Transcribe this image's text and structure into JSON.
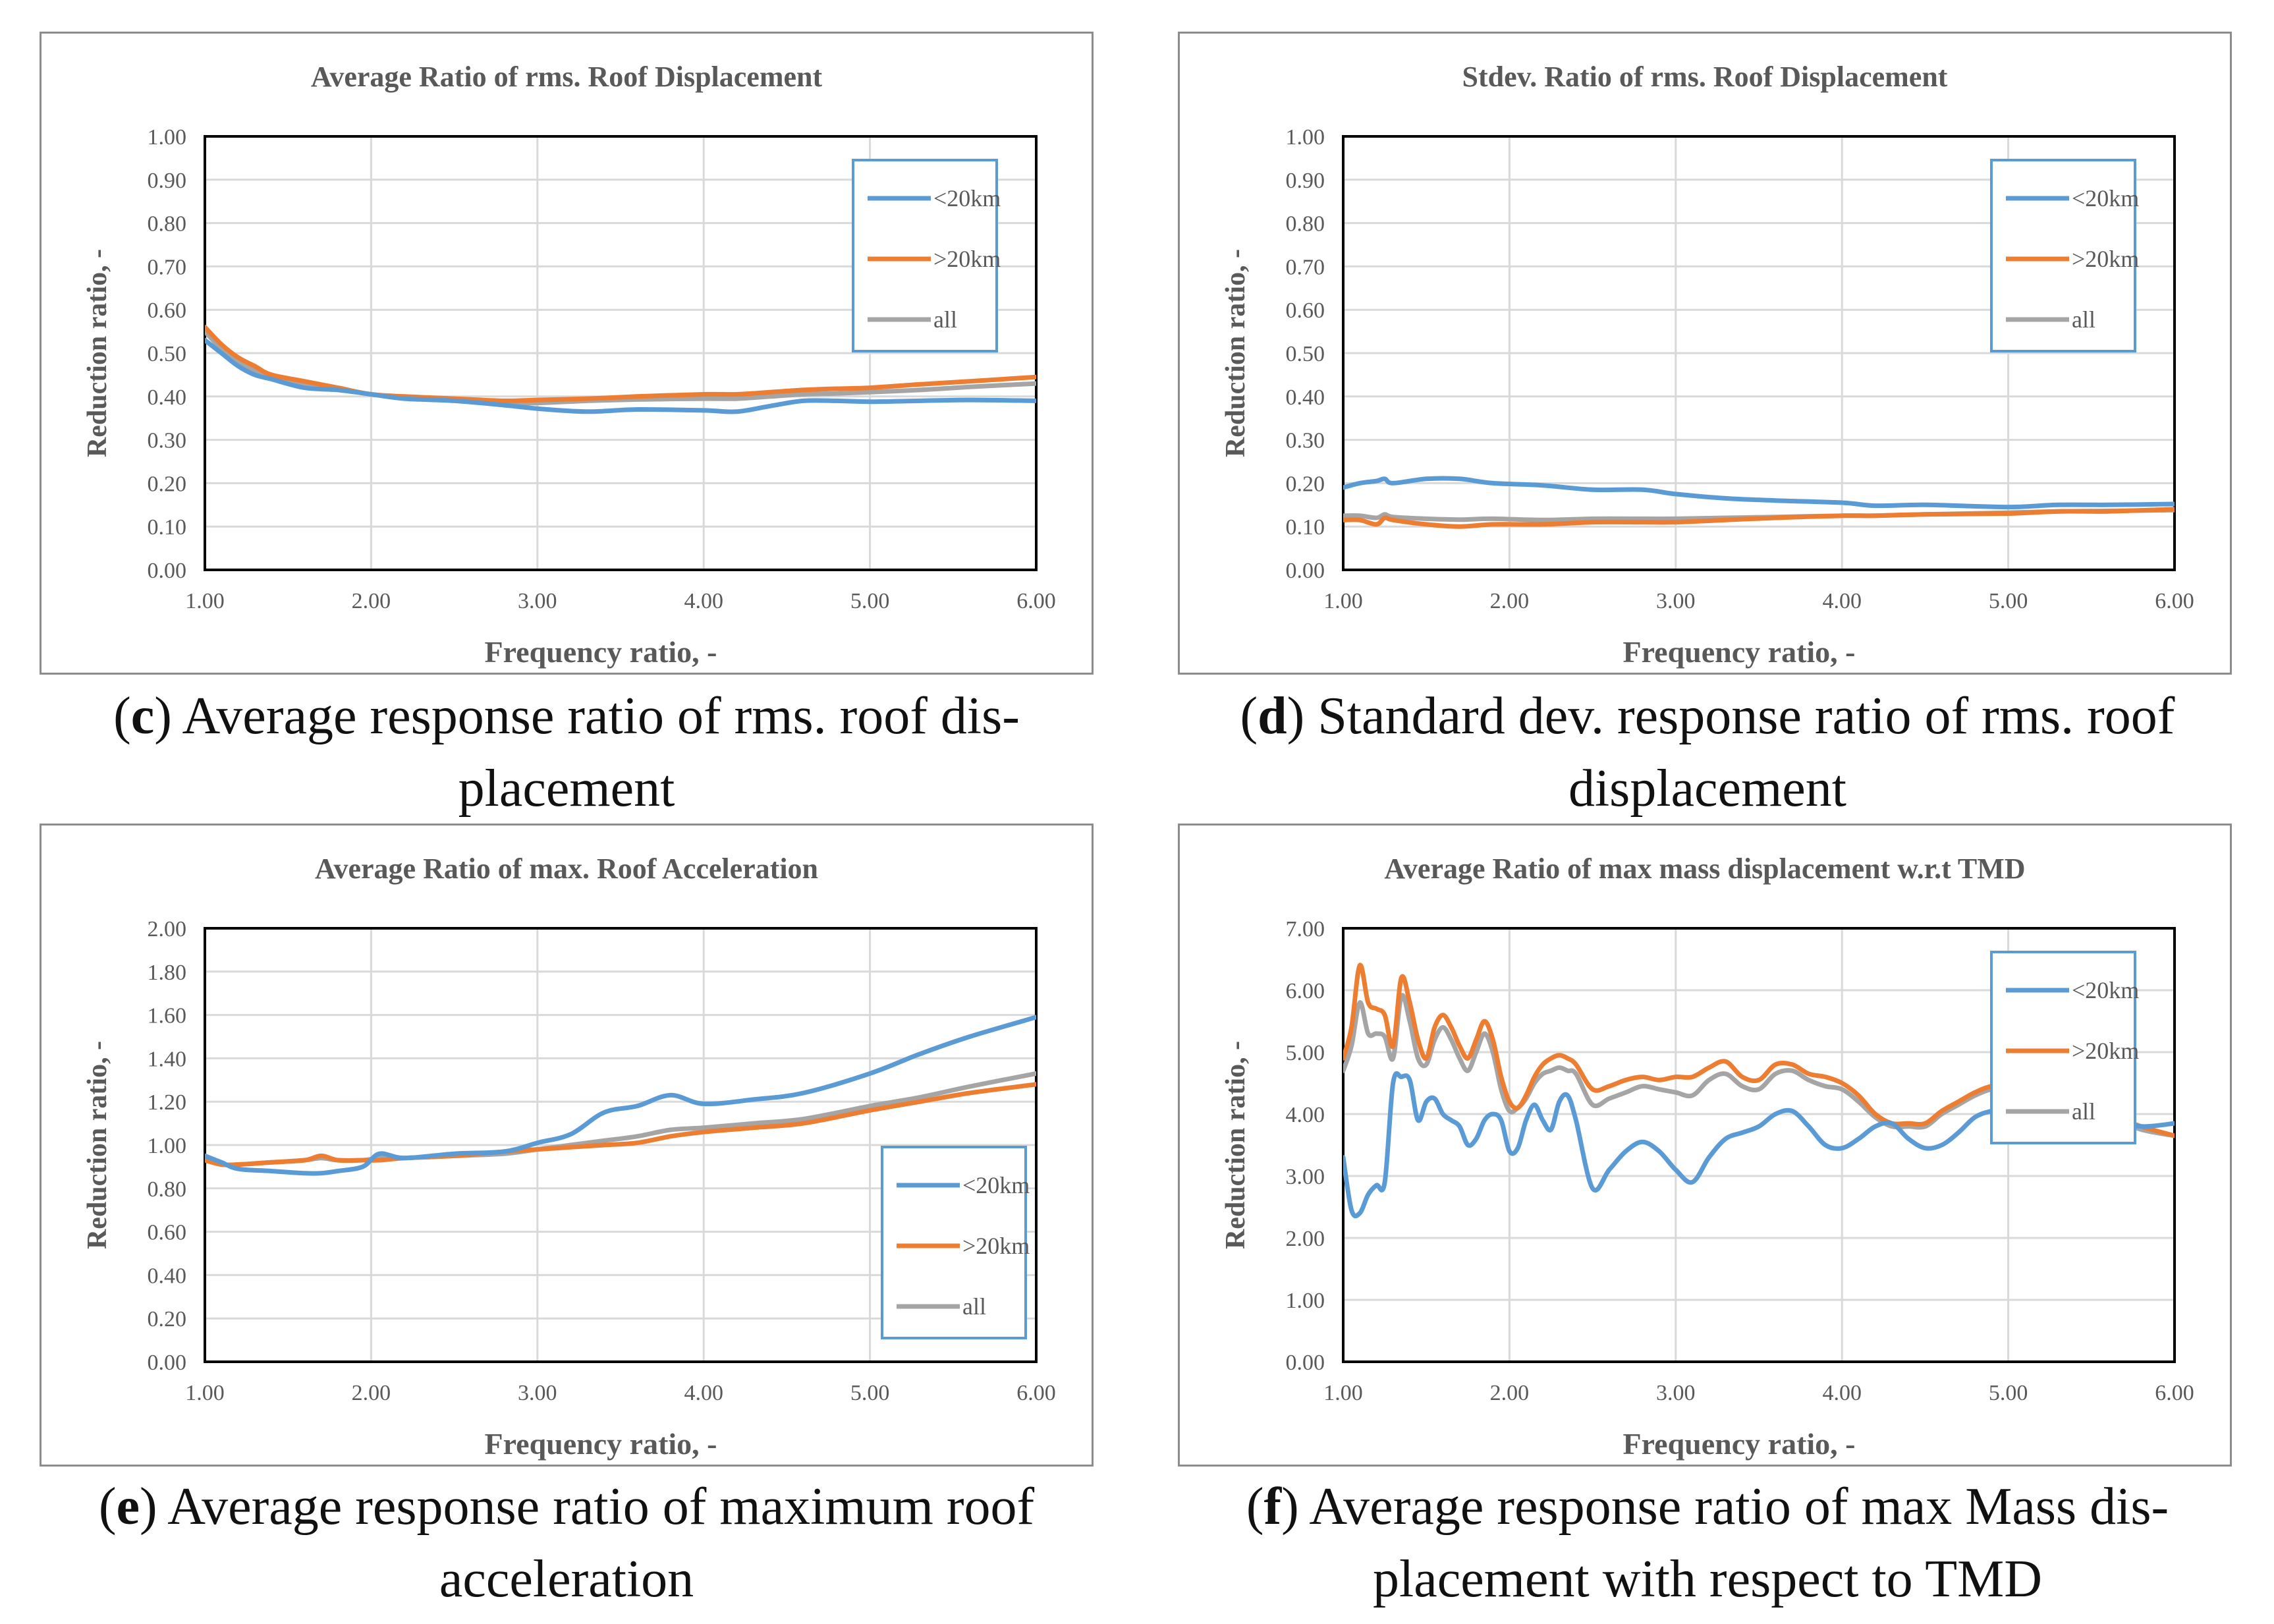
{
  "captions": [
    {
      "letter": "c",
      "text": "Average response ratio of rms. roof dis-\nplacement"
    },
    {
      "letter": "d",
      "text": "Standard dev. response ratio of rms. roof\ndisplacement"
    },
    {
      "letter": "e",
      "text": "Average response ratio of maximum roof\nacceleration"
    },
    {
      "letter": "f",
      "text": "Average response ratio of max Mass dis-\nplacement with respect to TMD"
    }
  ],
  "colors": {
    "lt20km": "#5b9bd5",
    "gt20km": "#ed7d31",
    "all": "#a5a5a5",
    "legend_border": "#5b9bd5",
    "grid": "#d9d9d9",
    "axis_text": "#595959"
  },
  "chart_data": [
    {
      "type": "line",
      "title": "Average Ratio of rms. Roof Displacement",
      "xlabel": "Frequency ratio, -",
      "ylabel": "Reduction ratio, -",
      "xlim": [
        1,
        6
      ],
      "ylim": [
        0,
        1
      ],
      "xticks": [
        "1.00",
        "2.00",
        "3.00",
        "4.00",
        "5.00",
        "6.00"
      ],
      "yticks": [
        "0.00",
        "0.10",
        "0.20",
        "0.30",
        "0.40",
        "0.50",
        "0.60",
        "0.70",
        "0.80",
        "0.90",
        "1.00"
      ],
      "legend_position": "top-right",
      "x": [
        1.0,
        1.1,
        1.2,
        1.3,
        1.4,
        1.6,
        1.8,
        2.0,
        2.2,
        2.5,
        2.8,
        3.0,
        3.3,
        3.6,
        4.0,
        4.2,
        4.4,
        4.6,
        4.8,
        5.0,
        5.3,
        5.6,
        6.0
      ],
      "series": [
        {
          "name": "<20km",
          "values": [
            0.53,
            0.5,
            0.47,
            0.45,
            0.44,
            0.42,
            0.415,
            0.405,
            0.395,
            0.39,
            0.38,
            0.372,
            0.365,
            0.37,
            0.368,
            0.365,
            0.378,
            0.39,
            0.39,
            0.388,
            0.39,
            0.392,
            0.39
          ]
        },
        {
          "name": ">20km",
          "values": [
            0.56,
            0.52,
            0.49,
            0.47,
            0.45,
            0.435,
            0.42,
            0.405,
            0.4,
            0.395,
            0.39,
            0.392,
            0.395,
            0.4,
            0.405,
            0.405,
            0.41,
            0.415,
            0.418,
            0.42,
            0.428,
            0.435,
            0.445
          ]
        },
        {
          "name": "all",
          "values": [
            0.55,
            0.51,
            0.48,
            0.46,
            0.445,
            0.43,
            0.418,
            0.405,
            0.398,
            0.392,
            0.385,
            0.385,
            0.39,
            0.393,
            0.395,
            0.395,
            0.4,
            0.405,
            0.407,
            0.41,
            0.415,
            0.422,
            0.43
          ]
        }
      ]
    },
    {
      "type": "line",
      "title": "Stdev. Ratio of  rms. Roof Displacement",
      "xlabel": "Frequency ratio, -",
      "ylabel": "Reduction ratio, -",
      "xlim": [
        1,
        6
      ],
      "ylim": [
        0,
        1
      ],
      "xticks": [
        "1.00",
        "2.00",
        "3.00",
        "4.00",
        "5.00",
        "6.00"
      ],
      "yticks": [
        "0.00",
        "0.10",
        "0.20",
        "0.30",
        "0.40",
        "0.50",
        "0.60",
        "0.70",
        "0.80",
        "0.90",
        "1.00"
      ],
      "legend_position": "top-right",
      "x": [
        1.0,
        1.1,
        1.2,
        1.25,
        1.3,
        1.5,
        1.7,
        1.9,
        2.2,
        2.5,
        2.8,
        3.0,
        3.3,
        3.6,
        4.0,
        4.2,
        4.5,
        5.0,
        5.3,
        5.6,
        6.0
      ],
      "series": [
        {
          "name": "<20km",
          "values": [
            0.19,
            0.2,
            0.205,
            0.21,
            0.2,
            0.21,
            0.21,
            0.2,
            0.195,
            0.185,
            0.185,
            0.175,
            0.165,
            0.16,
            0.155,
            0.148,
            0.15,
            0.145,
            0.15,
            0.15,
            0.152
          ]
        },
        {
          "name": ">20km",
          "values": [
            0.115,
            0.115,
            0.105,
            0.12,
            0.115,
            0.105,
            0.1,
            0.105,
            0.105,
            0.11,
            0.11,
            0.11,
            0.115,
            0.12,
            0.125,
            0.125,
            0.128,
            0.13,
            0.135,
            0.135,
            0.14
          ]
        },
        {
          "name": "all",
          "values": [
            0.125,
            0.125,
            0.12,
            0.128,
            0.122,
            0.118,
            0.116,
            0.118,
            0.115,
            0.118,
            0.118,
            0.118,
            0.12,
            0.122,
            0.125,
            0.125,
            0.128,
            0.132,
            0.135,
            0.136,
            0.138
          ]
        }
      ]
    },
    {
      "type": "line",
      "title": "Average Ratio of max. Roof Acceleration",
      "xlabel": "Frequency ratio, -",
      "ylabel": "Reduction ratio, -",
      "xlim": [
        1,
        6
      ],
      "ylim": [
        0,
        2
      ],
      "xticks": [
        "1.00",
        "2.00",
        "3.00",
        "4.00",
        "5.00",
        "6.00"
      ],
      "yticks": [
        "0.00",
        "0.20",
        "0.40",
        "0.60",
        "0.80",
        "1.00",
        "1.20",
        "1.40",
        "1.60",
        "1.80",
        "2.00"
      ],
      "legend_position": "bottom-right",
      "x": [
        1.0,
        1.1,
        1.2,
        1.4,
        1.6,
        1.7,
        1.8,
        1.95,
        2.05,
        2.2,
        2.5,
        2.8,
        3.0,
        3.2,
        3.4,
        3.6,
        3.8,
        4.0,
        4.3,
        4.6,
        5.0,
        5.3,
        5.6,
        6.0
      ],
      "series": [
        {
          "name": "<20km",
          "values": [
            0.95,
            0.92,
            0.89,
            0.88,
            0.87,
            0.87,
            0.88,
            0.9,
            0.96,
            0.94,
            0.96,
            0.97,
            1.01,
            1.05,
            1.15,
            1.18,
            1.23,
            1.19,
            1.21,
            1.24,
            1.33,
            1.42,
            1.5,
            1.59
          ]
        },
        {
          "name": ">20km",
          "values": [
            0.93,
            0.91,
            0.91,
            0.92,
            0.93,
            0.95,
            0.93,
            0.93,
            0.93,
            0.94,
            0.95,
            0.97,
            0.98,
            0.99,
            1.0,
            1.01,
            1.04,
            1.06,
            1.08,
            1.1,
            1.16,
            1.2,
            1.24,
            1.28
          ]
        },
        {
          "name": "all",
          "values": [
            0.93,
            0.91,
            0.91,
            0.92,
            0.93,
            0.94,
            0.93,
            0.93,
            0.94,
            0.94,
            0.95,
            0.96,
            0.98,
            1.0,
            1.02,
            1.04,
            1.07,
            1.08,
            1.1,
            1.12,
            1.18,
            1.22,
            1.27,
            1.33
          ]
        }
      ]
    },
    {
      "type": "line",
      "title": "Average Ratio of max mass displacement w.r.t TMD",
      "xlabel": "Frequency ratio, -",
      "ylabel": "Reduction ratio, -",
      "xlim": [
        1,
        6
      ],
      "ylim": [
        0,
        7
      ],
      "xticks": [
        "1.00",
        "2.00",
        "3.00",
        "4.00",
        "5.00",
        "6.00"
      ],
      "yticks": [
        "0.00",
        "1.00",
        "2.00",
        "3.00",
        "4.00",
        "5.00",
        "6.00",
        "7.00"
      ],
      "legend_position": "top-right",
      "x": [
        1.0,
        1.05,
        1.1,
        1.15,
        1.2,
        1.25,
        1.3,
        1.35,
        1.4,
        1.45,
        1.5,
        1.55,
        1.6,
        1.65,
        1.7,
        1.75,
        1.8,
        1.85,
        1.9,
        1.95,
        2.0,
        2.05,
        2.1,
        2.15,
        2.2,
        2.25,
        2.3,
        2.35,
        2.4,
        2.5,
        2.6,
        2.7,
        2.8,
        2.9,
        3.0,
        3.1,
        3.2,
        3.3,
        3.4,
        3.5,
        3.6,
        3.7,
        3.8,
        3.9,
        4.0,
        4.1,
        4.2,
        4.3,
        4.4,
        4.5,
        4.6,
        4.7,
        4.8,
        4.9,
        5.0,
        5.2,
        5.4,
        5.6,
        5.8,
        6.0
      ],
      "series": [
        {
          "name": "<20km",
          "values": [
            3.3,
            2.45,
            2.4,
            2.7,
            2.85,
            2.9,
            4.5,
            4.6,
            4.55,
            3.9,
            4.2,
            4.25,
            4.0,
            3.9,
            3.8,
            3.5,
            3.6,
            3.9,
            4.0,
            3.9,
            3.4,
            3.45,
            3.9,
            4.15,
            3.9,
            3.75,
            4.2,
            4.3,
            3.9,
            2.8,
            3.1,
            3.4,
            3.55,
            3.4,
            3.1,
            2.9,
            3.3,
            3.6,
            3.7,
            3.8,
            4.0,
            4.05,
            3.8,
            3.5,
            3.45,
            3.6,
            3.8,
            3.85,
            3.6,
            3.45,
            3.5,
            3.7,
            3.95,
            4.05,
            4.1,
            4.2,
            4.1,
            3.9,
            3.8,
            3.85
          ]
        },
        {
          "name": ">20km",
          "values": [
            4.9,
            5.4,
            6.4,
            5.8,
            5.7,
            5.6,
            5.1,
            6.2,
            5.8,
            5.2,
            4.9,
            5.4,
            5.6,
            5.4,
            5.1,
            4.9,
            5.2,
            5.5,
            5.2,
            4.6,
            4.2,
            4.1,
            4.3,
            4.6,
            4.8,
            4.9,
            4.95,
            4.9,
            4.8,
            4.4,
            4.45,
            4.55,
            4.6,
            4.55,
            4.6,
            4.6,
            4.75,
            4.85,
            4.6,
            4.55,
            4.8,
            4.8,
            4.65,
            4.6,
            4.5,
            4.3,
            4.0,
            3.85,
            3.85,
            3.85,
            4.05,
            4.2,
            4.35,
            4.45,
            4.45,
            4.35,
            4.15,
            4.0,
            3.8,
            3.65
          ]
        },
        {
          "name": "all",
          "values": [
            4.7,
            5.1,
            5.8,
            5.3,
            5.3,
            5.25,
            4.9,
            5.9,
            5.5,
            4.9,
            4.8,
            5.2,
            5.4,
            5.2,
            4.9,
            4.7,
            5.0,
            5.3,
            5.0,
            4.4,
            4.05,
            4.1,
            4.25,
            4.5,
            4.65,
            4.7,
            4.75,
            4.7,
            4.65,
            4.15,
            4.25,
            4.35,
            4.45,
            4.4,
            4.35,
            4.3,
            4.55,
            4.65,
            4.45,
            4.4,
            4.65,
            4.7,
            4.55,
            4.45,
            4.4,
            4.2,
            3.95,
            3.8,
            3.8,
            3.8,
            4.0,
            4.15,
            4.3,
            4.4,
            4.4,
            4.3,
            4.1,
            3.95,
            3.75,
            3.65
          ]
        }
      ]
    }
  ]
}
